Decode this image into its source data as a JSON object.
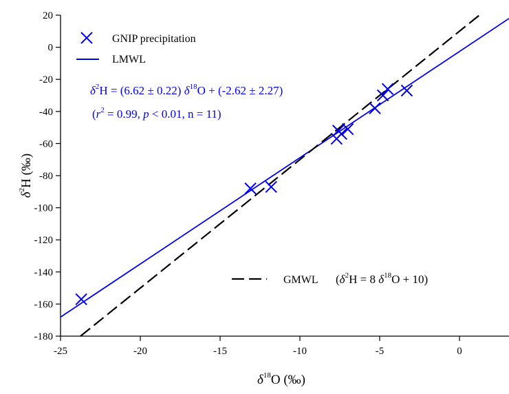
{
  "chart_data": {
    "type": "scatter",
    "x_axis": {
      "label_symbol": "δ",
      "label_sup": "18",
      "label_rest": "O (‰)",
      "lim": [
        -25,
        4
      ],
      "ticks": [
        -25,
        -20,
        -15,
        -10,
        -5,
        0
      ],
      "tick_labels": [
        "-25",
        "-20",
        "-15",
        "-10",
        "-5",
        "0"
      ]
    },
    "y_axis": {
      "label_symbol": "δ",
      "label_sup": "2",
      "label_rest": "H (‰)",
      "lim": [
        -180,
        20
      ],
      "ticks": [
        -180,
        -160,
        -140,
        -120,
        -100,
        -80,
        -60,
        -40,
        -20,
        0,
        20
      ],
      "tick_labels": [
        "-180",
        "-160",
        "-140",
        "-120",
        "-100",
        "-80",
        "-60",
        "-40",
        "-20",
        "0",
        "20"
      ]
    },
    "grid": false,
    "series": [
      {
        "name": "GNIP precipitation",
        "kind": "scatter",
        "marker": "x",
        "color": "#0000ee",
        "points": [
          {
            "x": -23.7,
            "y": -157
          },
          {
            "x": -13.1,
            "y": -88
          },
          {
            "x": -11.8,
            "y": -87
          },
          {
            "x": -7.7,
            "y": -57
          },
          {
            "x": -7.6,
            "y": -52
          },
          {
            "x": -7.4,
            "y": -54
          },
          {
            "x": -7.0,
            "y": -51
          },
          {
            "x": -5.3,
            "y": -38
          },
          {
            "x": -4.8,
            "y": -30
          },
          {
            "x": -4.5,
            "y": -26
          },
          {
            "x": -3.3,
            "y": -27
          }
        ]
      },
      {
        "name": "LMWL",
        "kind": "line",
        "color": "#0000ee",
        "dashed": false,
        "slope": 6.62,
        "intercept": -2.62
      },
      {
        "name": "GMWL",
        "kind": "line",
        "color": "#000000",
        "dashed": true,
        "slope": 8,
        "intercept": 10
      }
    ],
    "legend": {
      "placement": "top-left",
      "scatter_label": "GNIP precipitation",
      "lmwl_label": "LMWL"
    },
    "annotations": {
      "lmwl_equation_line1": {
        "d": "δ",
        "sup": "2",
        "a": "H = (6.62 ±  0.22) ",
        "d2": "δ",
        "sup2": "18",
        "b": "O + (-2.62 ±  2.27)"
      },
      "lmwl_equation_line2": {
        "open": "(",
        "r": "r",
        "sup": "2",
        "a": " = 0.99, ",
        "p": "p",
        "b": " < 0.01, n = 11)"
      },
      "gmwl_label": {
        "name": "GMWL",
        "open": "(",
        "d": "δ",
        "sup": "2",
        "a": "H = 8 ",
        "d2": "δ",
        "sup2": "18",
        "b": "O + 10)"
      }
    }
  }
}
